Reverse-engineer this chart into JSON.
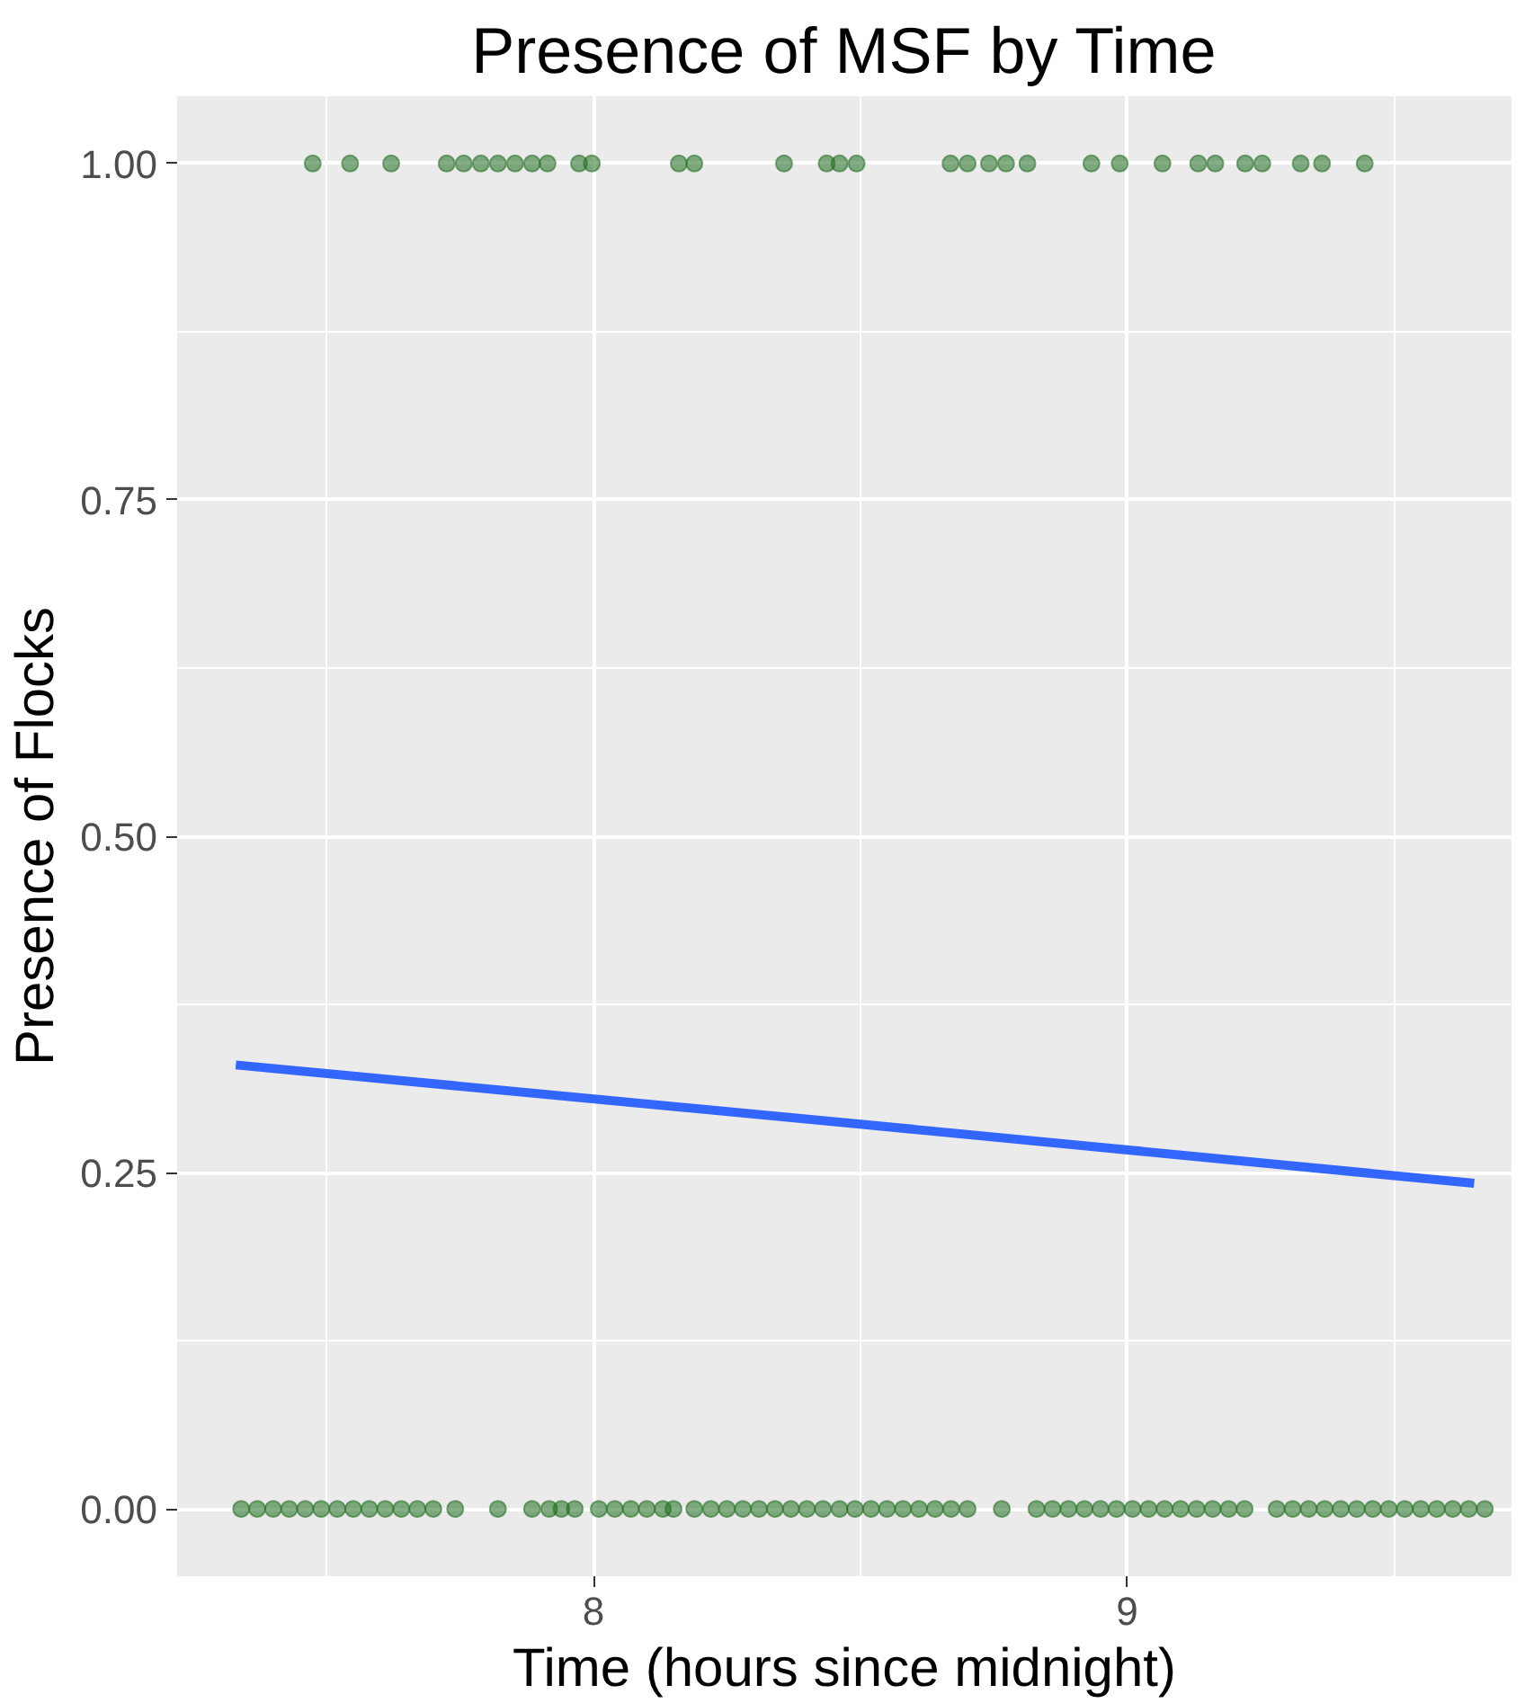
{
  "chart_data": {
    "type": "scatter",
    "title": "Presence of MSF by Time",
    "xlabel": "Time (hours since midnight)",
    "ylabel": "Presence of Flocks",
    "xlim": [
      7.22,
      9.72
    ],
    "ylim": [
      -0.05,
      1.05
    ],
    "xticks": [
      8,
      9
    ],
    "yticks": [
      {
        "value": 0,
        "label": "0.00"
      },
      {
        "value": 0.25,
        "label": "0.25"
      },
      {
        "value": 0.5,
        "label": "0.50"
      },
      {
        "value": 0.75,
        "label": "0.75"
      },
      {
        "value": 1,
        "label": "1.00"
      }
    ],
    "grid": true,
    "marker": "circle",
    "series": [
      {
        "color": "#1f6e1f",
        "x": [
          7.474,
          7.544,
          7.621,
          7.725,
          7.757,
          7.789,
          7.821,
          7.853,
          7.885,
          7.914,
          7.973,
          7.997,
          8.16,
          8.189,
          8.357,
          8.437,
          8.461,
          8.493,
          8.669,
          8.701,
          8.741,
          8.773,
          8.813,
          8.933,
          8.986,
          9.066,
          9.133,
          9.165,
          9.221,
          9.253,
          9.325,
          9.365,
          9.445
        ],
        "values": [
          1,
          1,
          1,
          1,
          1,
          1,
          1,
          1,
          1,
          1,
          1,
          1,
          1,
          1,
          1,
          1,
          1,
          1,
          1,
          1,
          1,
          1,
          1,
          1,
          1,
          1,
          1,
          1,
          1,
          1,
          1,
          1,
          1
        ]
      },
      {
        "color": "#1f6e1f",
        "x": [
          7.34,
          7.37,
          7.4,
          7.43,
          7.46,
          7.49,
          7.52,
          7.55,
          7.58,
          7.61,
          7.64,
          7.67,
          7.7,
          7.741,
          7.821,
          7.885,
          7.917,
          7.94,
          7.965,
          8.01,
          8.04,
          8.07,
          8.1,
          8.13,
          8.15,
          8.189,
          8.22,
          8.25,
          8.28,
          8.31,
          8.34,
          8.37,
          8.4,
          8.43,
          8.461,
          8.49,
          8.52,
          8.55,
          8.58,
          8.61,
          8.64,
          8.67,
          8.701,
          8.765,
          8.83,
          8.86,
          8.89,
          8.92,
          8.95,
          8.98,
          9.01,
          9.04,
          9.07,
          9.1,
          9.13,
          9.16,
          9.19,
          9.22,
          9.28,
          9.31,
          9.34,
          9.37,
          9.4,
          9.43,
          9.46,
          9.49,
          9.52,
          9.55,
          9.58,
          9.61,
          9.64,
          9.67
        ],
        "values": [
          0,
          0,
          0,
          0,
          0,
          0,
          0,
          0,
          0,
          0,
          0,
          0,
          0,
          0,
          0,
          0,
          0,
          0,
          0,
          0,
          0,
          0,
          0,
          0,
          0,
          0,
          0,
          0,
          0,
          0,
          0,
          0,
          0,
          0,
          0,
          0,
          0,
          0,
          0,
          0,
          0,
          0,
          0,
          0,
          0,
          0,
          0,
          0,
          0,
          0,
          0,
          0,
          0,
          0,
          0,
          0,
          0,
          0,
          0,
          0,
          0,
          0,
          0,
          0,
          0,
          0,
          0,
          0,
          0,
          0,
          0,
          0
        ]
      },
      {
        "type": "line",
        "marker": "none",
        "color": "#3366ff",
        "x": [
          7.33,
          8.5,
          9.65
        ],
        "values": [
          0.33,
          0.286,
          0.242
        ]
      }
    ]
  }
}
